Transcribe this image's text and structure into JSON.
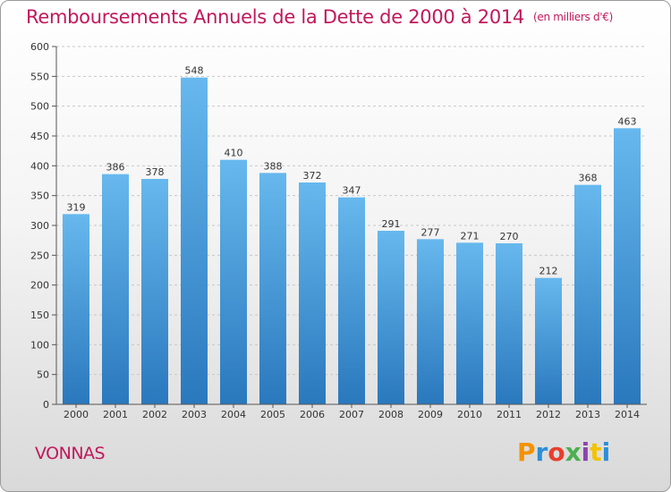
{
  "header": {
    "title": "Remboursements Annuels de la Dette de 2000 à 2014",
    "unit": "(en milliers d'€)"
  },
  "footer": {
    "city": "VONNAS",
    "logo": "Proxiti",
    "logo_colors": [
      "#f39200",
      "#2d8ed6",
      "#e83e2c",
      "#4caf50",
      "#8e44ad",
      "#f2c300",
      "#2d8ed6"
    ]
  },
  "colors": {
    "bar_top": "#67b8ee",
    "bar_bottom": "#2a78bd",
    "title": "#c2185b"
  },
  "chart_data": {
    "type": "bar",
    "title": "Remboursements Annuels de la Dette de 2000 à 2014",
    "xlabel": "",
    "ylabel": "",
    "categories": [
      "2000",
      "2001",
      "2002",
      "2003",
      "2004",
      "2005",
      "2006",
      "2007",
      "2008",
      "2009",
      "2010",
      "2011",
      "2012",
      "2013",
      "2014"
    ],
    "values": [
      319,
      386,
      378,
      548,
      410,
      388,
      372,
      347,
      291,
      277,
      271,
      270,
      212,
      368,
      463
    ],
    "ylim": [
      0,
      600
    ],
    "yticks": [
      0,
      50,
      100,
      150,
      200,
      250,
      300,
      350,
      400,
      450,
      500,
      550,
      600
    ],
    "grid": "horizontal dashed",
    "legend": "none"
  }
}
